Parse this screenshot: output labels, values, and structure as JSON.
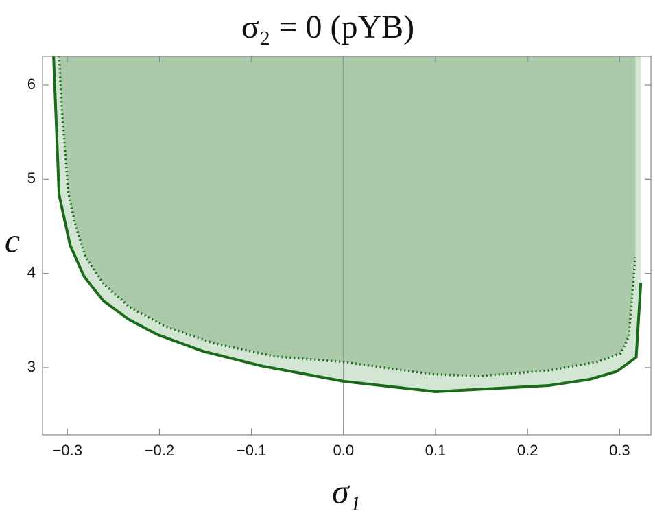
{
  "chart_data": {
    "type": "line",
    "title": "σ₂ = 0 (pYB)",
    "xlabel": "σ₁",
    "ylabel": "c",
    "xlim": [
      -0.327,
      0.334
    ],
    "ylim": [
      2.286,
      6.306
    ],
    "xticks": [
      {
        "value": -0.3,
        "label": "−0.3"
      },
      {
        "value": -0.2,
        "label": "−0.2"
      },
      {
        "value": -0.1,
        "label": "−0.1"
      },
      {
        "value": 0,
        "label": "0.0"
      },
      0.1,
      0.2,
      0.3
    ],
    "yticks": [
      3,
      4,
      5,
      6
    ],
    "axis_color": "#888888",
    "series": [
      {
        "color": "#1a6b1a",
        "fill": "#d3e6d3",
        "style": "solid",
        "x": [
          -0.315,
          -0.309,
          -0.297,
          -0.282,
          -0.261,
          -0.233,
          -0.202,
          -0.153,
          -0.09,
          0.0,
          0.1,
          0.148,
          0.223,
          0.267,
          0.297,
          0.318,
          0.323
        ],
        "values": [
          6.31,
          4.835,
          4.3,
          3.97,
          3.71,
          3.51,
          3.35,
          3.175,
          3.02,
          2.855,
          2.745,
          2.77,
          2.81,
          2.875,
          2.96,
          3.11,
          3.9
        ]
      },
      {
        "color": "#1a6b1a",
        "fill": "#aacaaa",
        "style": "dotted",
        "x": [
          -0.309,
          -0.306,
          -0.299,
          -0.291,
          -0.28,
          -0.26,
          -0.232,
          -0.194,
          -0.142,
          -0.075,
          0.0,
          0.096,
          0.148,
          0.223,
          0.275,
          0.301,
          0.31,
          0.317
        ],
        "values": [
          6.31,
          5.74,
          4.86,
          4.5,
          4.17,
          3.88,
          3.64,
          3.44,
          3.26,
          3.12,
          3.06,
          2.93,
          2.91,
          2.97,
          3.06,
          3.15,
          3.33,
          4.17
        ]
      }
    ]
  }
}
